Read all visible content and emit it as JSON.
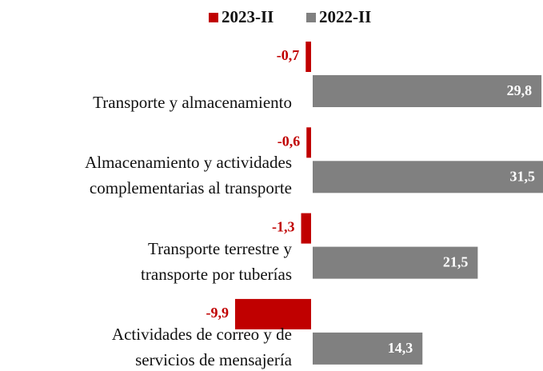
{
  "chart_data": {
    "type": "hbar",
    "categories": [
      "Transporte y almacenamiento",
      "Almacenamiento y actividades\ncomplementarias al transporte",
      "Transporte terrestre y\ntransporte por tuberías",
      "Actividades de correo y de\nservicios de mensajería"
    ],
    "series": [
      {
        "name": "2023-II",
        "color": "#c00000",
        "values": [
          -0.7,
          -0.6,
          -1.3,
          -9.9
        ],
        "value_labels": [
          "-0,7",
          "-0,6",
          "-1,3",
          "-9,9"
        ]
      },
      {
        "name": "2022-II",
        "color": "#808080",
        "values": [
          29.8,
          31.5,
          21.5,
          14.3
        ],
        "value_labels": [
          "29,8",
          "31,5",
          "21,5",
          "14,3"
        ]
      }
    ],
    "legend": "top"
  }
}
